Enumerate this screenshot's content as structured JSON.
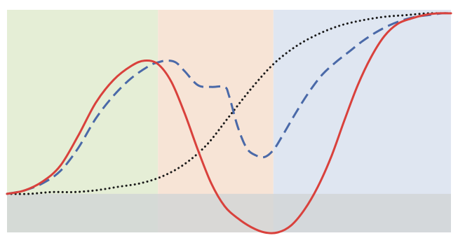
{
  "chart_data": {
    "type": "line",
    "title": "",
    "xlabel": "",
    "ylabel": "",
    "xlim": [
      0,
      100
    ],
    "ylim": [
      -0.22,
      1.05
    ],
    "grid": false,
    "legend": "none",
    "regions": [
      {
        "x0": 0,
        "x1": 34,
        "color": "#e5eed6"
      },
      {
        "x0": 34,
        "x1": 60,
        "color": "#f7e4d6"
      },
      {
        "x0": 60,
        "x1": 100,
        "color": "#dfe6f1"
      }
    ],
    "baseline_band": {
      "y0": -0.22,
      "y1": 0,
      "color": "#d1d4d6"
    },
    "series": [
      {
        "style": "solid",
        "color": "#d9413c",
        "x": [
          0,
          4,
          8,
          12,
          16,
          20,
          24,
          28,
          31,
          34,
          37,
          40,
          43,
          46,
          49,
          52,
          55,
          58,
          61,
          64,
          67,
          70,
          73,
          76,
          79,
          82,
          85,
          88,
          91,
          94,
          97,
          100
        ],
        "y": [
          0,
          0.02,
          0.07,
          0.16,
          0.33,
          0.52,
          0.65,
          0.73,
          0.76,
          0.74,
          0.64,
          0.46,
          0.25,
          0.06,
          -0.07,
          -0.14,
          -0.19,
          -0.22,
          -0.22,
          -0.18,
          -0.09,
          0.04,
          0.21,
          0.42,
          0.62,
          0.78,
          0.9,
          0.97,
          1.0,
          1.02,
          1.03,
          1.03
        ]
      },
      {
        "style": "dashed",
        "color": "#4a69a8",
        "x": [
          0,
          4,
          8,
          12,
          16,
          20,
          24,
          28,
          32,
          34,
          36,
          38,
          40,
          43,
          46,
          49,
          50,
          52,
          54,
          56,
          58,
          60,
          62,
          65,
          68,
          71,
          74,
          77,
          80,
          83,
          86,
          89,
          92,
          95,
          98,
          100
        ],
        "y": [
          0,
          0.02,
          0.06,
          0.13,
          0.26,
          0.43,
          0.56,
          0.66,
          0.73,
          0.75,
          0.76,
          0.75,
          0.7,
          0.62,
          0.61,
          0.61,
          0.56,
          0.38,
          0.26,
          0.22,
          0.21,
          0.25,
          0.33,
          0.46,
          0.58,
          0.68,
          0.75,
          0.81,
          0.87,
          0.92,
          0.96,
          0.99,
          1.01,
          1.02,
          1.03,
          1.03
        ]
      },
      {
        "style": "dotted",
        "color": "#1a1a1a",
        "x": [
          0,
          5,
          10,
          15,
          20,
          25,
          30,
          35,
          40,
          45,
          50,
          55,
          60,
          65,
          70,
          75,
          80,
          85,
          90,
          95,
          100
        ],
        "y": [
          0,
          0.0,
          0.01,
          0.01,
          0.02,
          0.04,
          0.06,
          0.1,
          0.17,
          0.28,
          0.44,
          0.6,
          0.74,
          0.84,
          0.91,
          0.96,
          0.99,
          1.01,
          1.02,
          1.03,
          1.03
        ]
      }
    ]
  }
}
